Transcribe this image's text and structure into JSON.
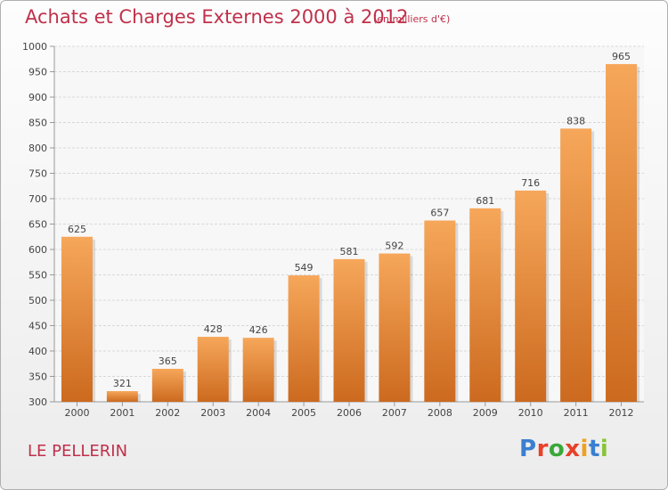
{
  "header": {
    "title": "Achats et Charges Externes 2000 à 2012",
    "unit": "(en milliers d'€)"
  },
  "footer": {
    "location": "LE PELLERIN",
    "brand": "Proxiti"
  },
  "colors": {
    "bar_top": "#f6a75a",
    "bar_bottom": "#cc6a1f",
    "title": "#c0304a",
    "logo": [
      "#3a7fd0",
      "#e8402a",
      "#3aa83a",
      "#e8402a",
      "#f0a020",
      "#3a7fd0",
      "#8ac43a"
    ]
  },
  "chart_data": {
    "type": "bar",
    "categories": [
      "2000",
      "2001",
      "2002",
      "2003",
      "2004",
      "2005",
      "2006",
      "2007",
      "2008",
      "2009",
      "2010",
      "2011",
      "2012"
    ],
    "values": [
      625,
      321,
      365,
      428,
      426,
      549,
      581,
      592,
      657,
      681,
      716,
      838,
      965
    ],
    "ylim": [
      300,
      1000
    ],
    "yticks": [
      300,
      350,
      400,
      450,
      500,
      550,
      600,
      650,
      700,
      750,
      800,
      850,
      900,
      950,
      1000
    ],
    "grid": true,
    "data_labels": true
  }
}
